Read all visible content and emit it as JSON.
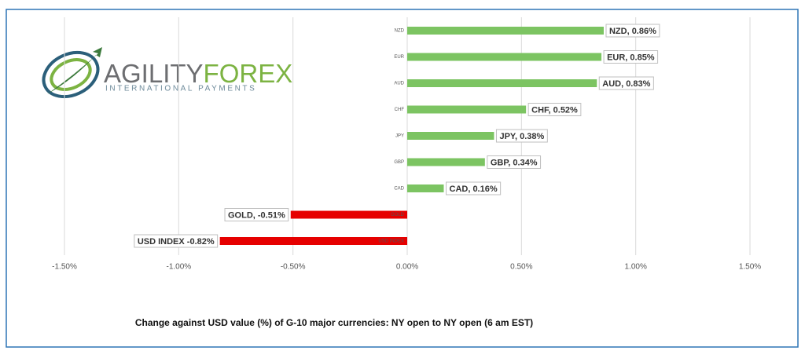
{
  "logo": {
    "words": [
      "AGILITY",
      "FOREX"
    ],
    "tagline": "INTERNATIONAL PAYMENTS"
  },
  "chart_data": {
    "type": "hbar",
    "title": "Change against  USD value (%)  of  G-10 major currencies:  NY open to NY open  (6 am EST)",
    "categories": [
      "NZD",
      "EUR",
      "AUD",
      "CHF",
      "JPY",
      "GBP",
      "CAD",
      "GOLD",
      "USD INDEX"
    ],
    "values": [
      0.86,
      0.85,
      0.83,
      0.52,
      0.38,
      0.34,
      0.16,
      -0.51,
      -0.82
    ],
    "value_labels": [
      "NZD, 0.86%",
      "EUR, 0.85%",
      "AUD, 0.83%",
      "CHF, 0.52%",
      "JPY, 0.38%",
      "GBP, 0.34%",
      "CAD, 0.16%",
      "GOLD, -0.51%",
      "USD INDEX -0.82%"
    ],
    "positive_color": "#7cc462",
    "negative_color": "#e60000",
    "xlim": [
      -1.5,
      1.5
    ],
    "xticks": [
      {
        "value": -1.5,
        "label": "-1.50%"
      },
      {
        "value": -1.0,
        "label": "-1.00%"
      },
      {
        "value": -0.5,
        "label": "-0.50%"
      },
      {
        "value": 0,
        "label": "0.00%"
      },
      {
        "value": 0.5,
        "label": "0.50%"
      },
      {
        "value": 1.0,
        "label": "1.00%"
      },
      {
        "value": 1.5,
        "label": "1.50%"
      }
    ],
    "grid": true
  }
}
